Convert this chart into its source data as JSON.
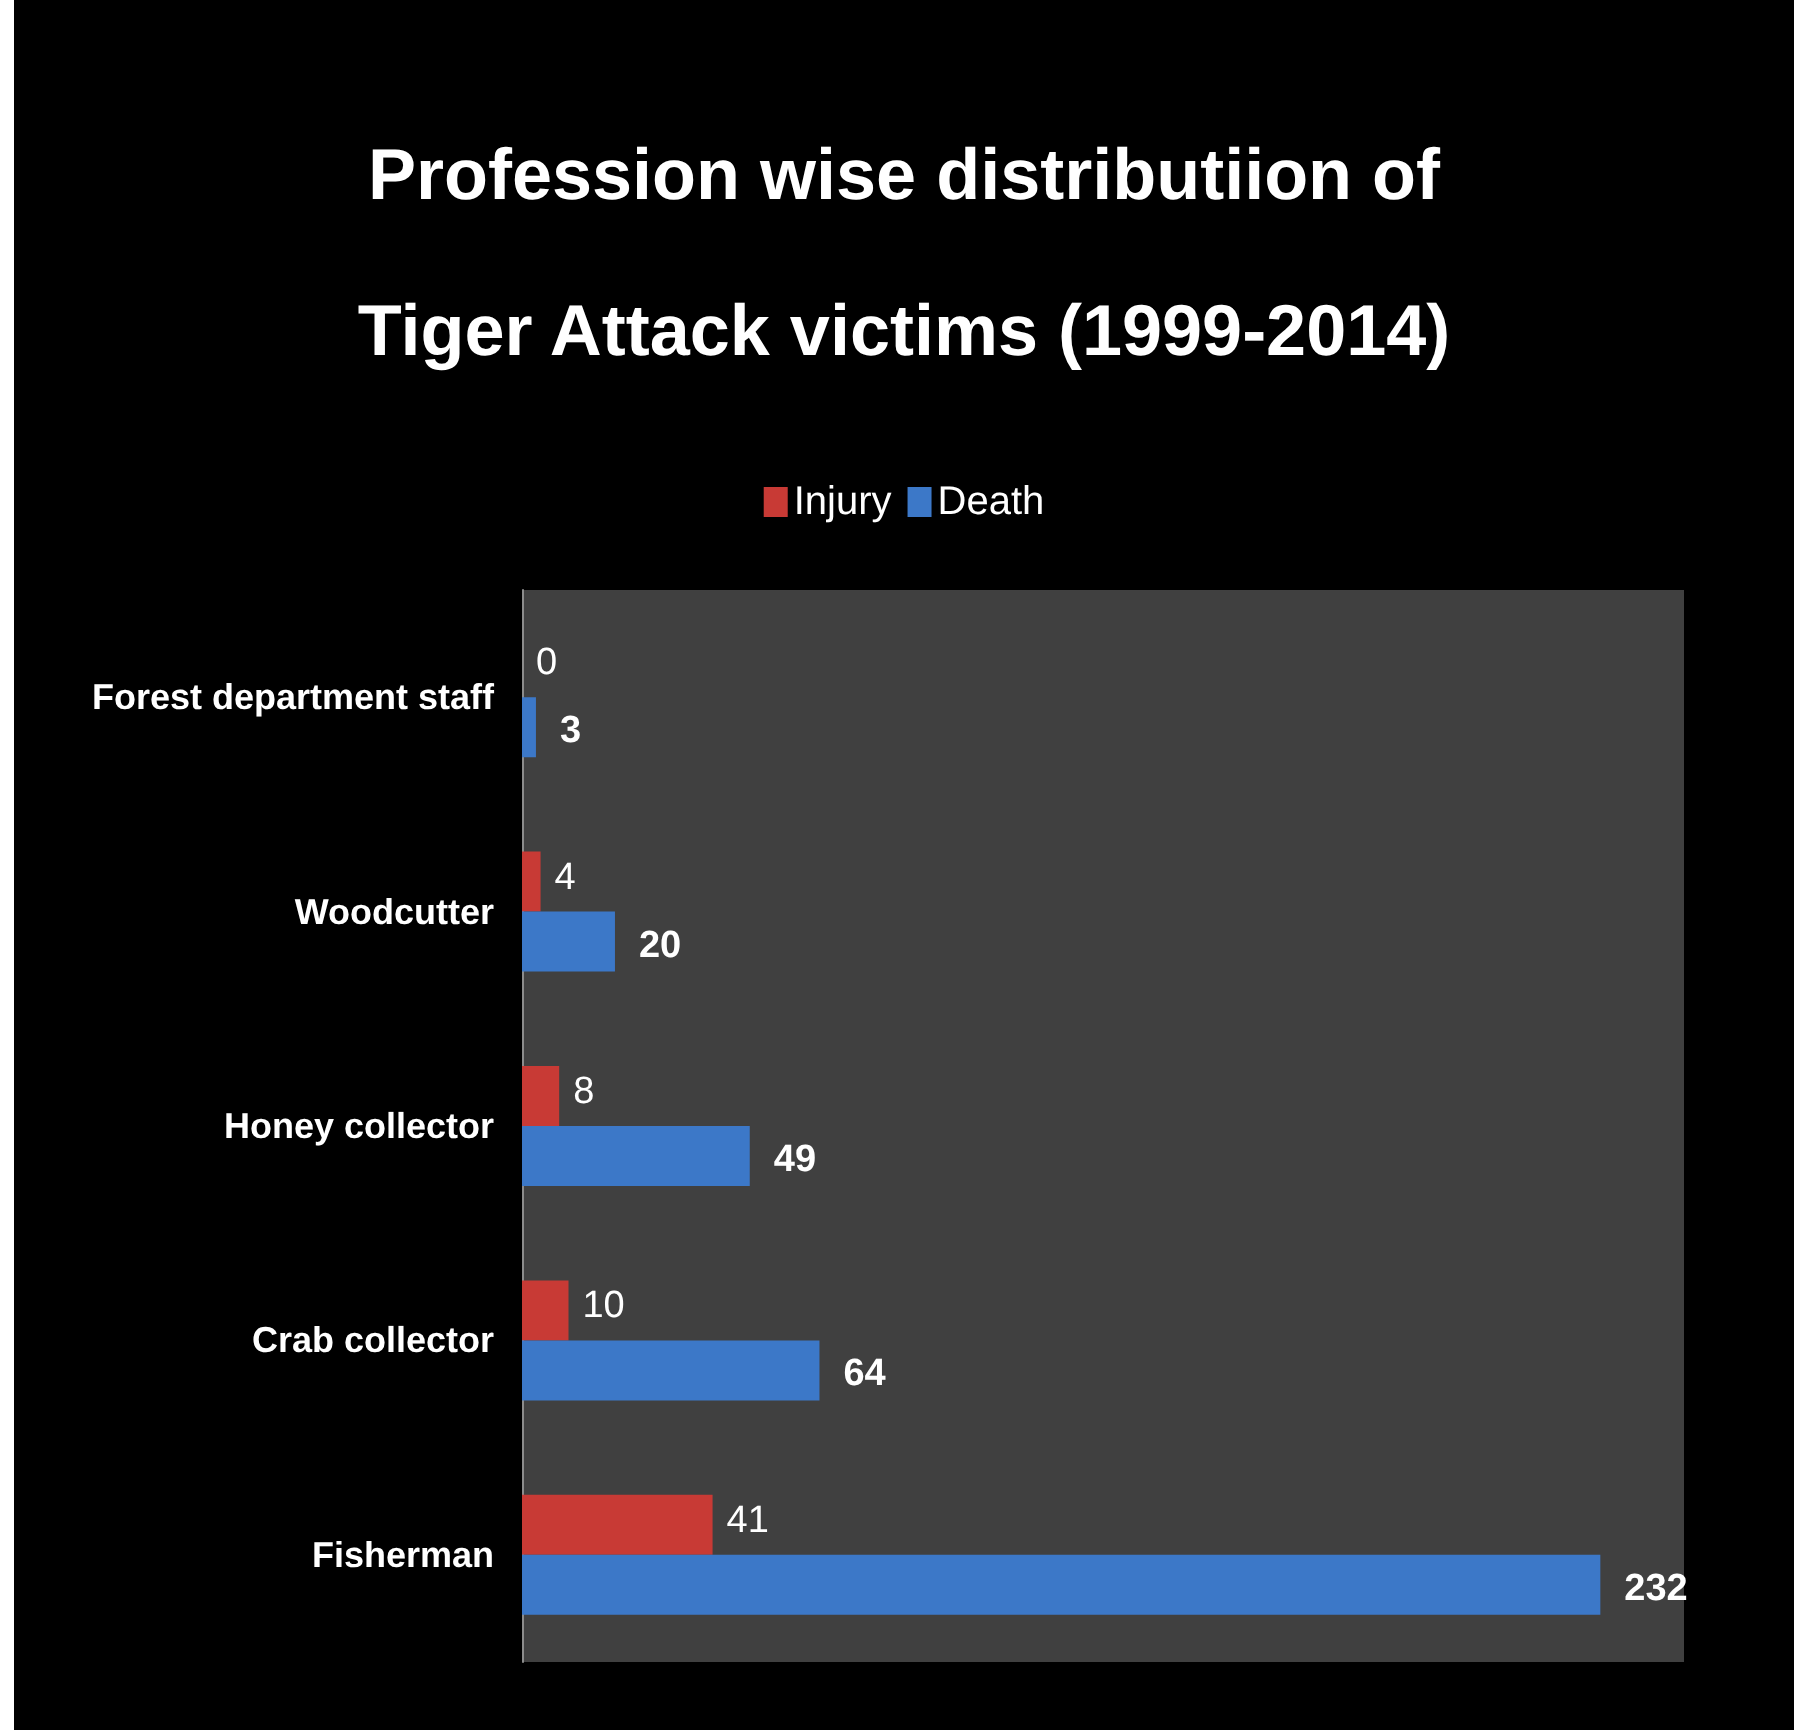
{
  "chart_data": {
    "type": "bar",
    "title": "Profession wise distributiion of\nTiger Attack victims (1999-2014)",
    "categories": [
      "Forest department staff",
      "Woodcutter",
      "Honey collector",
      "Crab collector",
      "Fisherman"
    ],
    "orientation": "horizontal",
    "series": [
      {
        "name": "Injury",
        "color": "#c83a35",
        "values": [
          0,
          4,
          8,
          10,
          41
        ]
      },
      {
        "name": "Death",
        "color": "#3c78c8",
        "values": [
          3,
          20,
          49,
          64,
          232
        ]
      }
    ],
    "data_labels": true,
    "legend": "top",
    "tick_labels": "y"
  }
}
